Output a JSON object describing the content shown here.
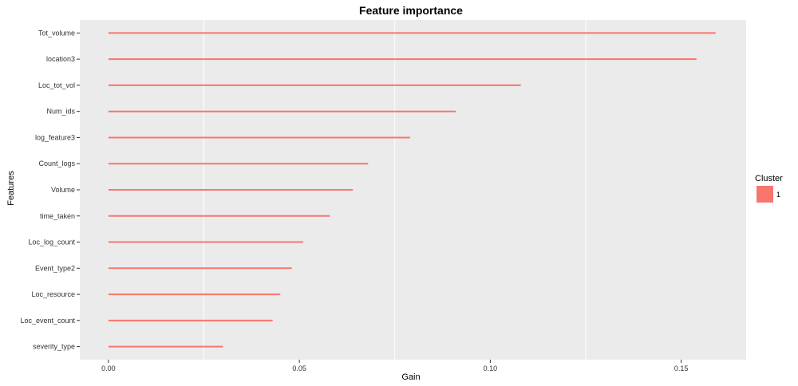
{
  "chart_data": {
    "type": "bar",
    "orientation": "horizontal",
    "title": "Feature importance",
    "xlabel": "Gain",
    "ylabel": "Features",
    "categories": [
      "Tot_volume",
      "location3",
      "Loc_tot_vol",
      "Num_ids",
      "log_feature3",
      "Count_logs",
      "Volume",
      "time_taken",
      "Loc_log_count",
      "Event_type2",
      "Loc_resource",
      "Loc_event_count",
      "severity_type"
    ],
    "series": [
      {
        "name": "1",
        "values": [
          0.159,
          0.154,
          0.108,
          0.091,
          0.079,
          0.068,
          0.064,
          0.058,
          0.051,
          0.048,
          0.045,
          0.043,
          0.03
        ]
      }
    ],
    "xlim": [
      -0.0075,
      0.167
    ],
    "x_ticks": [
      0.0,
      0.05,
      0.1,
      0.15
    ],
    "x_tick_labels": [
      "0.00",
      "0.05",
      "0.10",
      "0.15"
    ],
    "grid": true,
    "legend": {
      "title": "Cluster",
      "position": "right",
      "entries": [
        "1"
      ]
    },
    "colors": {
      "bar": "#F8766D",
      "panel": "#EBEBEB",
      "grid": "#FFFFFF"
    }
  }
}
